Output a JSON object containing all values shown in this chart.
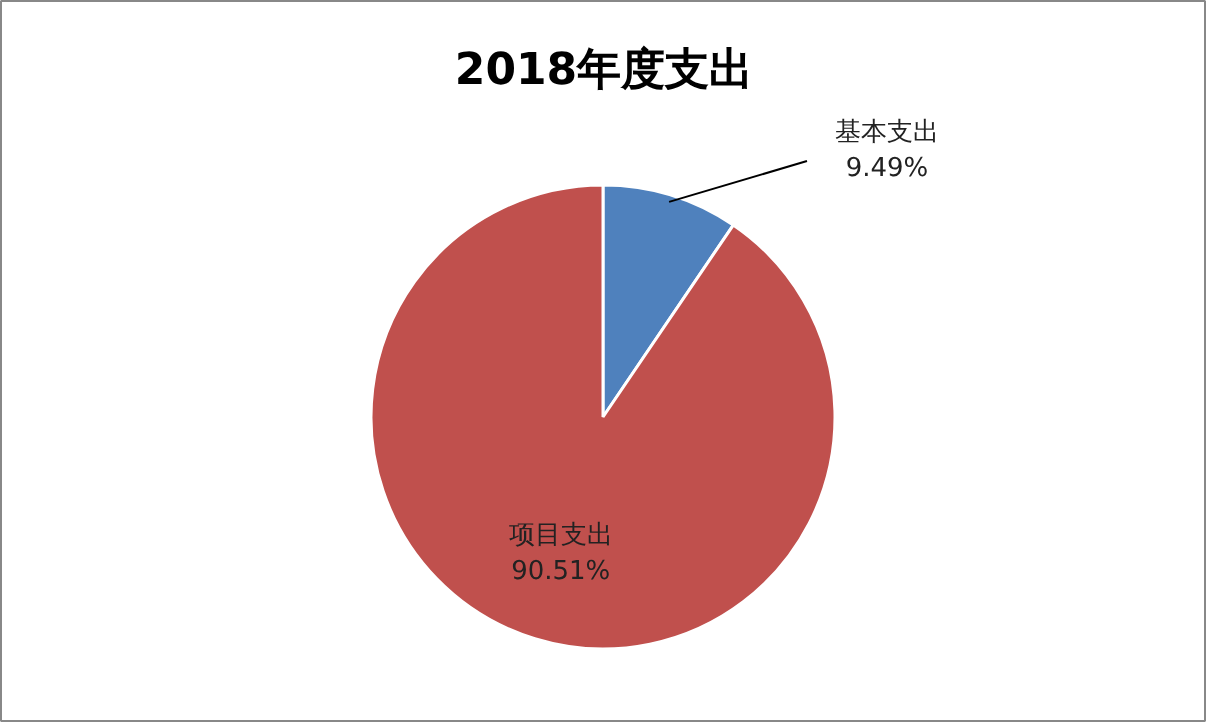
{
  "chart_data": {
    "type": "pie",
    "title": "2018年度支出",
    "categories": [
      "基本支出",
      "项目支出"
    ],
    "values": [
      9.49,
      90.51
    ],
    "colors": [
      "#4f81bd",
      "#c0504d"
    ],
    "value_labels": [
      "9.49%",
      "90.51%"
    ]
  }
}
